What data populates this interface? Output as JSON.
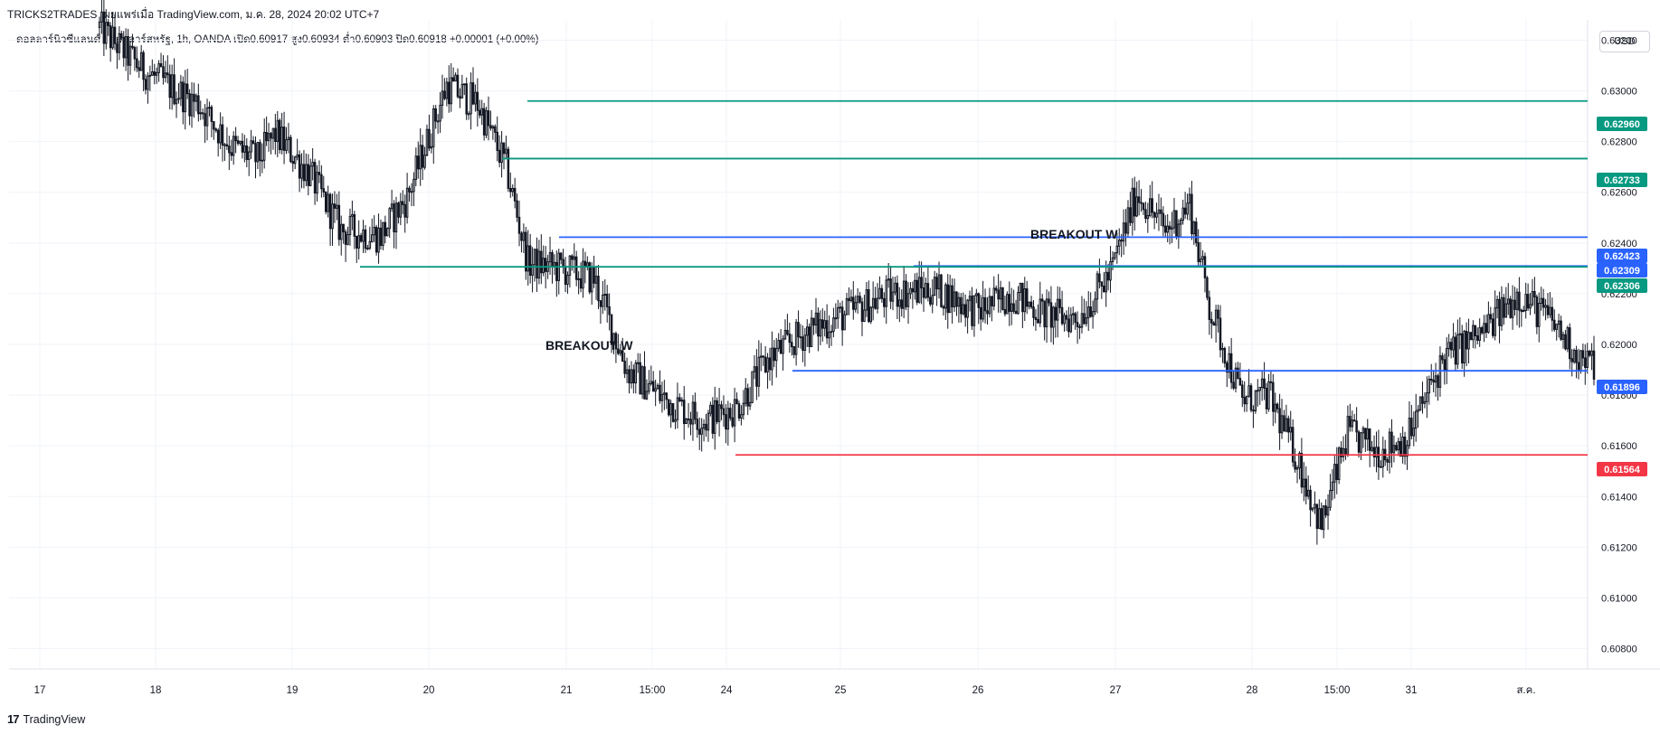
{
  "header": {
    "title": "TRICKS2TRADES เผยแพร่เมื่อ TradingView.com, ม.ค. 28, 2024 20:02 UTC+7",
    "ohlc": "ดอลลาร์นิวซีแลนด์ / ดอลลาร์สหรัฐ, 1h, OANDA  เปิด0.60917  สูง0.60934  ต่ำ0.60903  ปิด0.60918  +0.00001 (+0.00%)"
  },
  "currency_button": "USD",
  "footer": {
    "logo": "17",
    "brand": "TradingView"
  },
  "chart_data": {
    "type": "candlestick",
    "title": "",
    "symbol": "ดอลลาร์นิวซีแลนด์ / ดอลลาร์สหรัฐ",
    "interval": "1h",
    "exchange": "OANDA",
    "ylim": [
      0.6072,
      0.6328
    ],
    "y_ticks": [
      "0.63200",
      "0.63000",
      "0.62800",
      "0.62600",
      "0.62400",
      "0.62200",
      "0.62000",
      "0.61800",
      "0.61600",
      "0.61400",
      "0.61200",
      "0.61000",
      "0.60800"
    ],
    "x_ticks": [
      "17",
      "18",
      "19",
      "20",
      "21",
      "15:00",
      "24",
      "25",
      "26",
      "27",
      "28",
      "15:00",
      "31",
      "ส.ค."
    ],
    "anchors": [
      [
        0,
        0.6325
      ],
      [
        20,
        0.6308
      ],
      [
        45,
        0.6295
      ],
      [
        60,
        0.6278
      ],
      [
        72,
        0.6273
      ],
      [
        80,
        0.6283
      ],
      [
        95,
        0.6268
      ],
      [
        110,
        0.6245
      ],
      [
        128,
        0.6243
      ],
      [
        140,
        0.6258
      ],
      [
        158,
        0.6302
      ],
      [
        172,
        0.6295
      ],
      [
        185,
        0.627
      ],
      [
        195,
        0.6232
      ],
      [
        210,
        0.623
      ],
      [
        225,
        0.6226
      ],
      [
        240,
        0.619
      ],
      [
        258,
        0.6178
      ],
      [
        275,
        0.617
      ],
      [
        290,
        0.6175
      ],
      [
        305,
        0.6195
      ],
      [
        322,
        0.6205
      ],
      [
        340,
        0.6212
      ],
      [
        360,
        0.622
      ],
      [
        380,
        0.6222
      ],
      [
        400,
        0.6213
      ],
      [
        415,
        0.622
      ],
      [
        430,
        0.6212
      ],
      [
        445,
        0.621
      ],
      [
        460,
        0.6228
      ],
      [
        472,
        0.626
      ],
      [
        485,
        0.6245
      ],
      [
        496,
        0.6255
      ],
      [
        505,
        0.6215
      ],
      [
        520,
        0.6178
      ],
      [
        532,
        0.618
      ],
      [
        545,
        0.6155
      ],
      [
        556,
        0.6128
      ],
      [
        568,
        0.6165
      ],
      [
        582,
        0.6158
      ],
      [
        595,
        0.6163
      ],
      [
        612,
        0.6195
      ],
      [
        630,
        0.6205
      ],
      [
        645,
        0.622
      ],
      [
        660,
        0.621
      ],
      [
        675,
        0.6193
      ],
      [
        680,
        0.6192
      ]
    ],
    "levels": [
      {
        "label": "0.62960",
        "value": 0.6296,
        "color": "#089981"
      },
      {
        "label": "0.62733",
        "value": 0.62733,
        "color": "#089981"
      },
      {
        "label": "0.62423",
        "value": 0.62423,
        "color": "#2962ff"
      },
      {
        "label": "0.62309",
        "value": 0.62309,
        "color": "#2962ff"
      },
      {
        "label": "0.62306",
        "value": 0.62306,
        "color": "#089981"
      },
      {
        "label": "0.61896",
        "value": 0.61896,
        "color": "#2962ff"
      },
      {
        "label": "0.61564",
        "value": 0.61564,
        "color": "#f23645"
      }
    ],
    "annotations": [
      "BREAKOUT W",
      "BREAKOUT W"
    ]
  }
}
